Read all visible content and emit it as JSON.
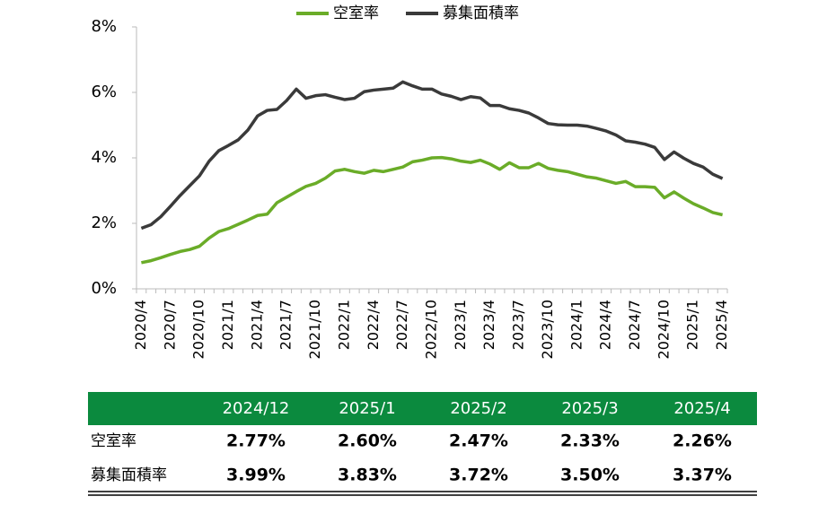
{
  "chart_data": {
    "type": "line",
    "categories": [
      "2020/4",
      null,
      null,
      "2020/7",
      null,
      null,
      "2020/10",
      null,
      null,
      "2021/1",
      null,
      null,
      "2021/4",
      null,
      null,
      "2021/7",
      null,
      null,
      "2021/10",
      null,
      null,
      "2022/1",
      null,
      null,
      "2022/4",
      null,
      null,
      "2022/7",
      null,
      null,
      "2022/10",
      null,
      null,
      "2023/1",
      null,
      null,
      "2023/4",
      null,
      null,
      "2023/7",
      null,
      null,
      "2023/10",
      null,
      null,
      "2024/1",
      null,
      null,
      "2024/4",
      null,
      null,
      "2024/7",
      null,
      null,
      "2024/10",
      null,
      null,
      "2025/1",
      null,
      null,
      "2025/4"
    ],
    "series": [
      {
        "name": "空室率",
        "color": "#6aac28",
        "values": [
          0.8,
          0.86,
          0.95,
          1.05,
          1.14,
          1.2,
          1.3,
          1.55,
          1.75,
          1.84,
          1.97,
          2.1,
          2.24,
          2.28,
          2.63,
          2.8,
          2.97,
          3.13,
          3.22,
          3.38,
          3.6,
          3.65,
          3.58,
          3.53,
          3.62,
          3.58,
          3.65,
          3.72,
          3.88,
          3.93,
          4.0,
          4.01,
          3.97,
          3.9,
          3.86,
          3.93,
          3.81,
          3.65,
          3.85,
          3.7,
          3.7,
          3.83,
          3.68,
          3.62,
          3.58,
          3.5,
          3.42,
          3.38,
          3.3,
          3.22,
          3.28,
          3.12,
          3.12,
          3.1,
          2.78,
          2.96,
          2.77,
          2.6,
          2.47,
          2.33,
          2.26
        ]
      },
      {
        "name": "募集面積率",
        "color": "#3a3a3a",
        "values": [
          1.85,
          1.96,
          2.2,
          2.52,
          2.85,
          3.15,
          3.45,
          3.9,
          4.22,
          4.38,
          4.55,
          4.85,
          5.28,
          5.45,
          5.48,
          5.75,
          6.1,
          5.82,
          5.9,
          5.93,
          5.85,
          5.78,
          5.82,
          6.02,
          6.07,
          6.1,
          6.13,
          6.32,
          6.2,
          6.1,
          6.1,
          5.95,
          5.88,
          5.78,
          5.87,
          5.83,
          5.6,
          5.6,
          5.5,
          5.45,
          5.37,
          5.22,
          5.05,
          5.01,
          5.0,
          5.0,
          4.97,
          4.9,
          4.82,
          4.7,
          4.52,
          4.48,
          4.42,
          4.32,
          3.95,
          4.18,
          3.99,
          3.83,
          3.72,
          3.5,
          3.37
        ]
      }
    ],
    "ylim": [
      0,
      8
    ],
    "yticks": [
      {
        "value": 0,
        "label": "0%"
      },
      {
        "value": 2,
        "label": "2%"
      },
      {
        "value": 4,
        "label": "4%"
      },
      {
        "value": 6,
        "label": "6%"
      },
      {
        "value": 8,
        "label": "8%"
      }
    ],
    "legend": "top"
  },
  "table": {
    "columns": [
      "2024/12",
      "2025/1",
      "2025/2",
      "2025/3",
      "2025/4"
    ],
    "header_color": "#0b8a3e",
    "rows": [
      {
        "label": "空室率",
        "cells": [
          "2.77%",
          "2.60%",
          "2.47%",
          "2.33%",
          "2.26%"
        ]
      },
      {
        "label": "募集面積率",
        "cells": [
          "3.99%",
          "3.83%",
          "3.72%",
          "3.50%",
          "3.37%"
        ]
      }
    ]
  }
}
